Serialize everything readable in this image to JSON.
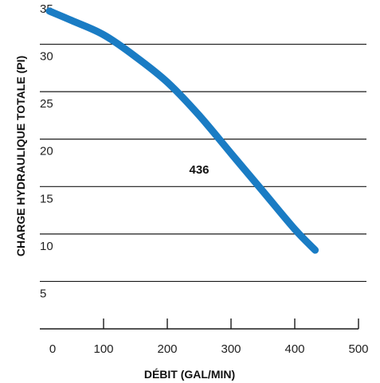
{
  "chart_data": {
    "type": "line",
    "title": "",
    "xlabel": "DÉBIT (GAL/MIN)",
    "ylabel": "CHARGE HYDRAULIQUE TOTALE (PI)",
    "xlim": [
      0,
      500
    ],
    "ylim": [
      0,
      35
    ],
    "xticks": [
      0,
      100,
      200,
      300,
      400,
      500
    ],
    "yticks": [
      5,
      10,
      15,
      20,
      25,
      30,
      35
    ],
    "grid": "horizontal",
    "series": [
      {
        "name": "436",
        "color": "#1a7cc4",
        "x": [
          15,
          50,
          100,
          150,
          200,
          250,
          300,
          350,
          400,
          432
        ],
        "y": [
          33.5,
          32.5,
          31,
          28.7,
          26,
          22.5,
          18.5,
          14.5,
          10.5,
          8.3
        ]
      }
    ]
  }
}
